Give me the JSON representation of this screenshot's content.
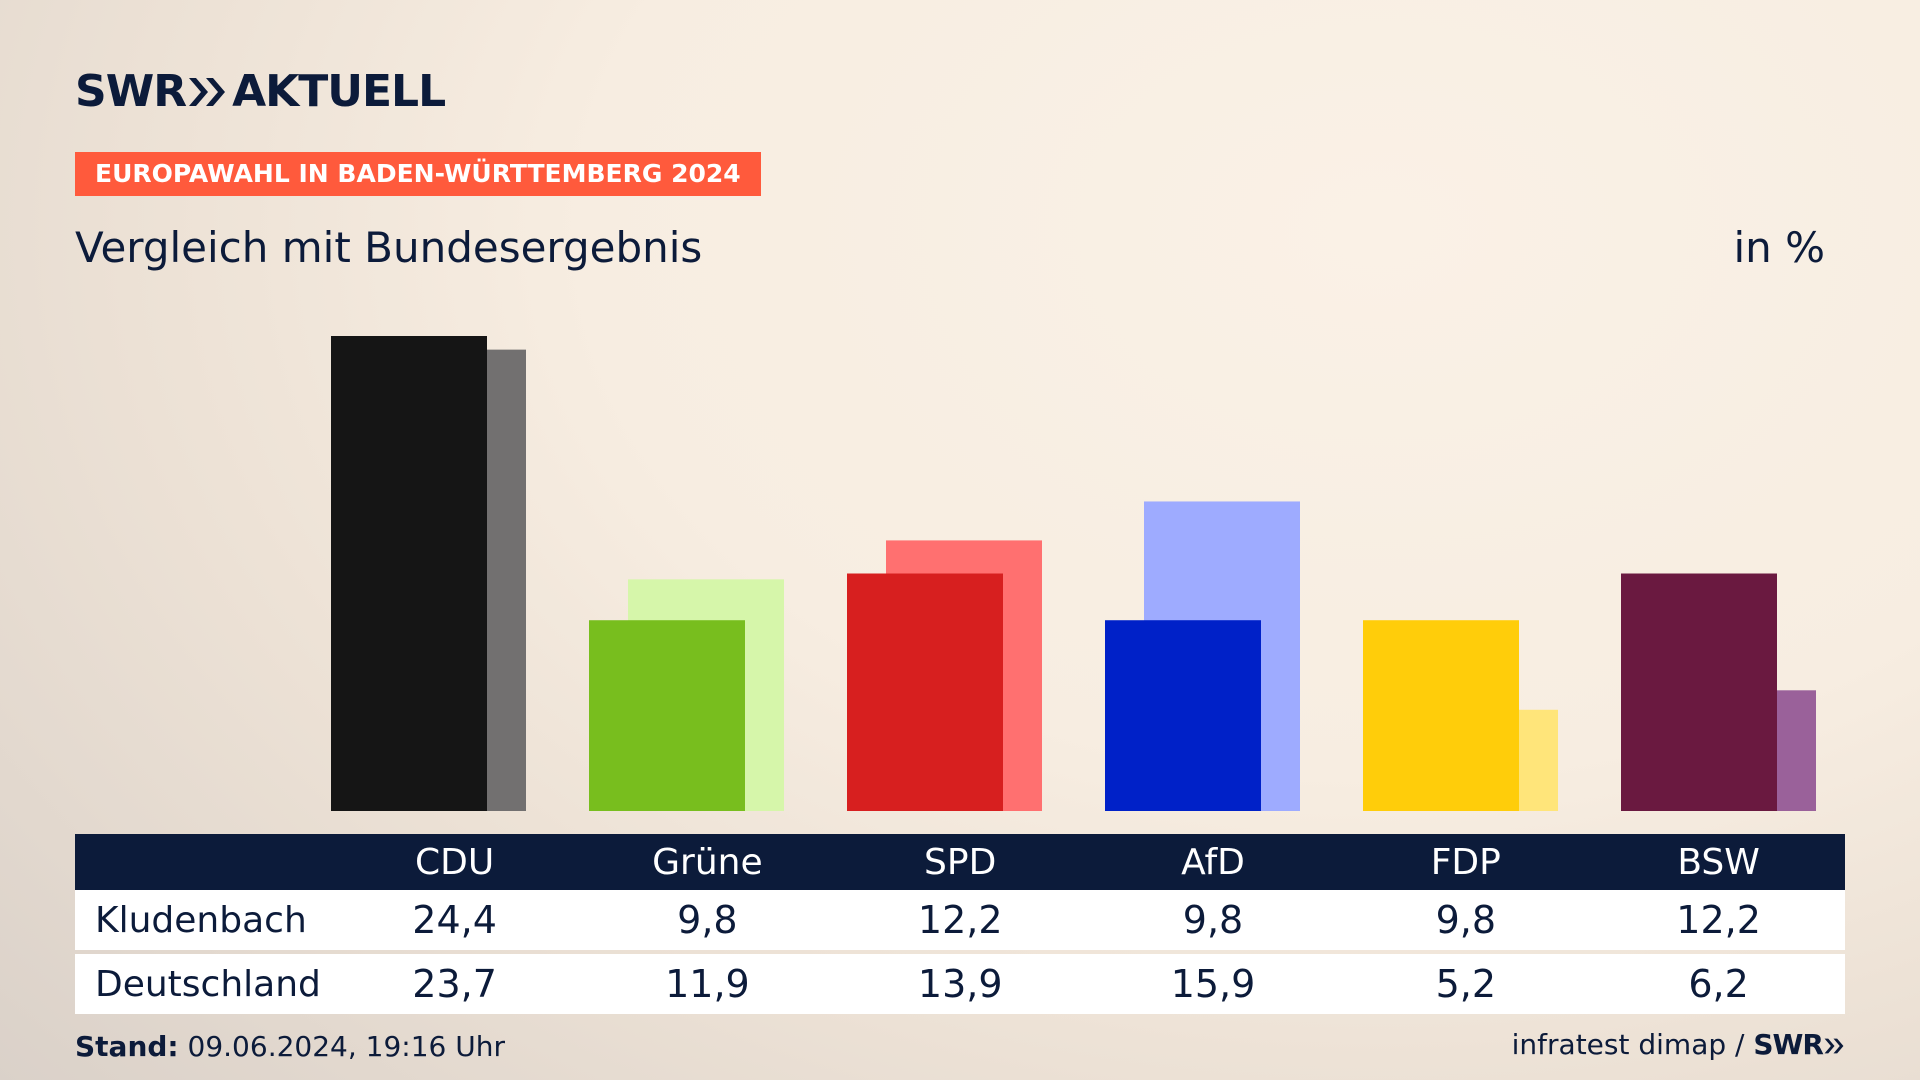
{
  "brand": {
    "name": "SWR",
    "product": "AKTUELL"
  },
  "header": {
    "badge": "EUROPAWAHL IN BADEN-WÜRTTEMBERG 2024",
    "subtitle": "Vergleich mit Bundesergebnis",
    "unit": "in %"
  },
  "colors": {
    "navy": "#0c1b3a",
    "badge": "#ff5a3c",
    "CDU": [
      "#151515",
      "#727070"
    ],
    "Grüne": [
      "#78be1e",
      "#d6f6aa"
    ],
    "SPD": [
      "#d71f1f",
      "#ff7070"
    ],
    "AfD": [
      "#0021c8",
      "#9eabff"
    ],
    "FDP": [
      "#ffcd0a",
      "#ffe57a"
    ],
    "BSW": [
      "#6a1940",
      "#9a619a"
    ]
  },
  "chart_data": {
    "type": "bar",
    "categories": [
      "CDU",
      "Grüne",
      "SPD",
      "AfD",
      "FDP",
      "BSW"
    ],
    "series": [
      {
        "name": "Kludenbach",
        "values": [
          24.4,
          9.8,
          12.2,
          9.8,
          9.8,
          12.2
        ]
      },
      {
        "name": "Deutschland",
        "values": [
          23.7,
          11.9,
          13.9,
          15.9,
          5.2,
          6.2
        ]
      }
    ],
    "ylim": [
      0,
      24.4
    ],
    "grid": false,
    "legend": "table-below"
  },
  "table": {
    "rows": [
      {
        "label": "Kludenbach",
        "values": [
          "24,4",
          "9,8",
          "12,2",
          "9,8",
          "9,8",
          "12,2"
        ]
      },
      {
        "label": "Deutschland",
        "values": [
          "23,7",
          "11,9",
          "13,9",
          "15,9",
          "5,2",
          "6,2"
        ]
      }
    ]
  },
  "footer": {
    "stand_label": "Stand:",
    "stand_value": "09.06.2024, 19:16 Uhr",
    "source": "infratest dimap /",
    "source_brand": "SWR"
  }
}
